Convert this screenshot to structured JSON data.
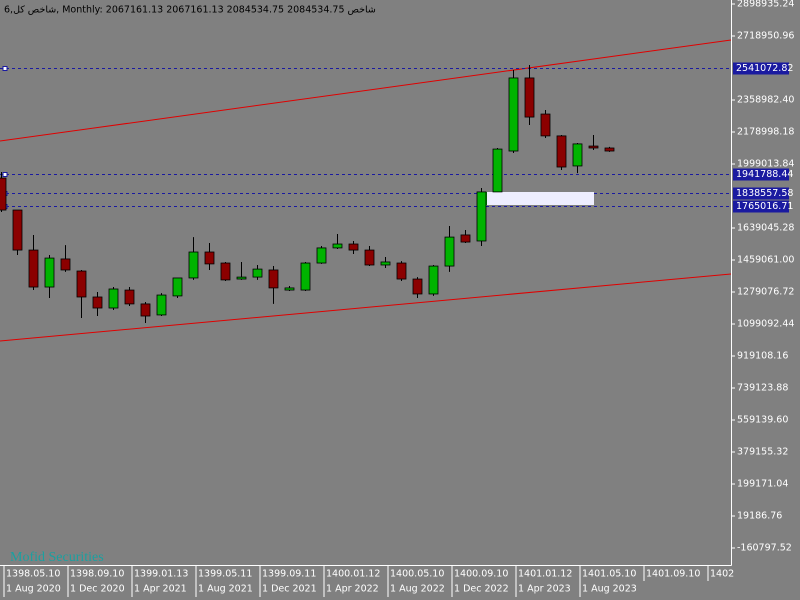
{
  "chart_data": {
    "type": "candlestick",
    "title": "شاخص کل,6, Monthly:  2067161.13 2067161.13 2084534.75 2084534.75  شاخص",
    "watermark": "Mofid Securities",
    "categories": [
      "1 Aug 2020",
      null,
      null,
      null,
      "1 Dec 2020",
      null,
      null,
      null,
      "1 Apr 2021",
      null,
      null,
      null,
      "1 Aug 2021",
      null,
      null,
      null,
      "1 Dec 2021",
      null,
      null,
      null,
      "1 Apr 2022",
      null,
      null,
      null,
      "1 Aug 2022",
      null,
      null,
      null,
      "1 Dec 2022",
      null,
      null,
      null,
      "1 Apr 2023",
      null,
      null,
      null,
      "1 Aug 2023",
      null,
      null
    ],
    "secondary_labels": [
      "1398.05.10",
      "1398.09.10",
      "1399.01.13",
      "1399.05.11",
      "1399.09.11",
      "1400.01.12",
      "1400.05.10",
      "1400.09.10",
      "1401.01.12",
      "1401.05.10",
      "1401.09.10",
      "1402"
    ],
    "open": [
      1920000,
      1740000,
      1515000,
      1307000,
      1465000,
      1397000,
      1251000,
      1189000,
      1290000,
      1212000,
      1150000,
      1257000,
      1358000,
      1504000,
      1442000,
      1352000,
      1363000,
      1403000,
      1290000,
      1290000,
      1442000,
      1527000,
      1549000,
      1515000,
      1431000,
      1442000,
      1352000,
      1268000,
      1425000,
      1600000,
      1566000,
      1842000,
      2072000,
      2483000,
      2280000,
      2157000,
      1988000,
      2100000,
      2089000
    ],
    "high": [
      1954000,
      1740000,
      1600000,
      1487000,
      1543000,
      1403000,
      1279000,
      1307000,
      1307000,
      1223000,
      1273000,
      1358000,
      1588000,
      1555000,
      1448000,
      1448000,
      1431000,
      1425000,
      1313000,
      1448000,
      1538000,
      1605000,
      1566000,
      1538000,
      1476000,
      1453000,
      1363000,
      1431000,
      1650000,
      1628000,
      1864000,
      2089000,
      2528000,
      2556000,
      2303000,
      2162000,
      2117000,
      2162000,
      2095000
    ],
    "low": [
      1729000,
      1487000,
      1290000,
      1245000,
      1392000,
      1133000,
      1144000,
      1178000,
      1200000,
      1105000,
      1144000,
      1245000,
      1347000,
      1403000,
      1341000,
      1347000,
      1347000,
      1212000,
      1285000,
      1285000,
      1437000,
      1521000,
      1493000,
      1425000,
      1414000,
      1341000,
      1245000,
      1257000,
      1392000,
      1555000,
      1538000,
      1842000,
      2061000,
      2218000,
      2145000,
      1965000,
      1948000,
      2078000,
      2067000
    ],
    "close": [
      1740000,
      1515000,
      1307000,
      1470000,
      1403000,
      1251000,
      1189000,
      1296000,
      1212000,
      1144000,
      1262000,
      1358000,
      1504000,
      1437000,
      1347000,
      1363000,
      1408000,
      1302000,
      1302000,
      1442000,
      1527000,
      1549000,
      1515000,
      1431000,
      1448000,
      1352000,
      1268000,
      1425000,
      1588000,
      1560000,
      1842000,
      2083000,
      2483000,
      2263000,
      2157000,
      1982000,
      2112000,
      2089000,
      2072000
    ],
    "up_color": "#00b400",
    "down_color": "#8b0000",
    "levels": [
      2541072.82,
      1941788.44,
      1838557.58,
      1765016.71
    ],
    "level_color": "#1a1aa0",
    "ylim": [
      -256400,
      2921400
    ],
    "yticks": [
      2898935.24,
      2718950.96,
      {
        "value": 2358982.4,
        "label": "2358982.40"
      },
      2178998.18,
      1999013.84,
      1639045.28,
      {
        "value": 1459061,
        "label": "1459061.00"
      },
      1279076.72,
      1099092.44,
      919108.16,
      739123.88,
      {
        "value": 559139.6,
        "label": "559139.60"
      },
      379155.32,
      199171.04,
      19186.76,
      -160797.52
    ]
  }
}
